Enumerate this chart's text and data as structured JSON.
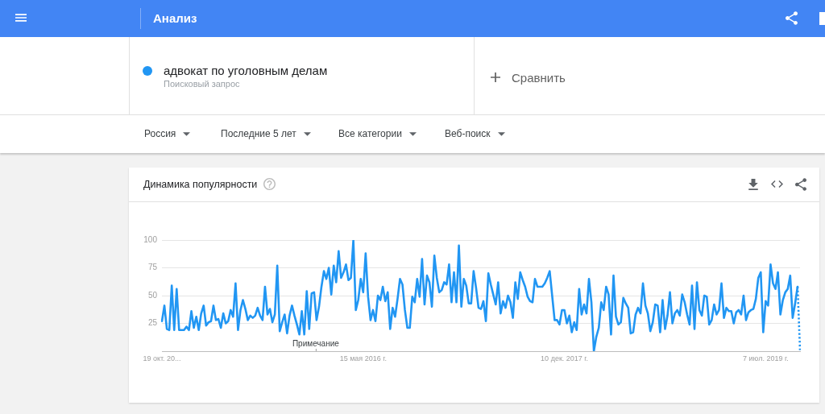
{
  "chart_data": {
    "type": "line",
    "title": "Динамика популярности",
    "annotations": [
      "Анализ",
      "Поисковый запрос",
      "Сравнить",
      "Россия",
      "Последние 5 лет",
      "Все категории",
      "Веб-поиск",
      "Примечание"
    ],
    "categories": [
      "19 окт. 20...",
      null,
      null,
      null,
      null,
      null,
      null,
      null,
      null,
      null,
      null,
      null,
      null,
      null,
      null,
      null,
      null,
      null,
      null,
      null,
      null,
      null,
      null,
      null,
      null,
      null,
      null,
      null,
      null,
      null,
      null,
      null,
      null,
      null,
      null,
      null,
      null,
      null,
      null,
      null,
      null,
      null,
      null,
      null,
      null,
      null,
      null,
      null,
      null,
      null,
      null,
      null,
      null,
      null,
      null,
      null,
      null,
      null,
      null,
      null,
      null,
      null,
      null,
      null,
      null,
      null,
      null,
      null,
      null,
      null,
      null,
      null,
      null,
      null,
      null,
      null,
      null,
      null,
      null,
      null,
      null,
      null,
      "15 мая 2016 г.",
      null,
      null,
      null,
      null,
      null,
      null,
      null,
      null,
      null,
      null,
      null,
      null,
      null,
      null,
      null,
      null,
      null,
      null,
      null,
      null,
      null,
      null,
      null,
      null,
      null,
      null,
      null,
      null,
      null,
      null,
      null,
      null,
      null,
      null,
      null,
      null,
      null,
      null,
      null,
      null,
      null,
      null,
      null,
      null,
      null,
      null,
      null,
      null,
      null,
      null,
      null,
      null,
      null,
      null,
      null,
      null,
      null,
      null,
      null,
      null,
      null,
      null,
      null,
      null,
      null,
      null,
      null,
      null,
      null,
      null,
      null,
      null,
      null,
      null,
      null,
      null,
      null,
      null,
      null,
      null,
      null,
      "10 дек. 2017 г.",
      null,
      null,
      null,
      null,
      null,
      null,
      null,
      null,
      null,
      null,
      null,
      null,
      null,
      null,
      null,
      null,
      null,
      null,
      null,
      null,
      null,
      null,
      null,
      null,
      null,
      null,
      null,
      null,
      null,
      null,
      null,
      null,
      null,
      null,
      null,
      null,
      null,
      null,
      null,
      null,
      null,
      null,
      null,
      null,
      null,
      null,
      null,
      null,
      null,
      null,
      null,
      null,
      null,
      null,
      null,
      null,
      null,
      null,
      null,
      null,
      null,
      null,
      null,
      null,
      null,
      null,
      null,
      null,
      null,
      null,
      null,
      null,
      null,
      null,
      null,
      null,
      null,
      null,
      null,
      null,
      null,
      "7 июл. 2019 г.",
      null,
      null,
      null,
      null,
      null,
      null,
      null,
      null,
      null,
      null,
      null,
      null,
      null,
      null
    ],
    "series": [
      {
        "name": "адвокат по уголовным делам",
        "color": "#2196f3",
        "values": [
          27,
          41,
          20,
          19,
          59,
          19,
          56,
          19,
          19,
          19,
          22,
          19,
          36,
          21,
          31,
          19,
          34,
          41,
          23,
          26,
          27,
          41,
          28,
          29,
          21,
          34,
          25,
          27,
          37,
          31,
          61,
          19,
          37,
          46,
          38,
          28,
          32,
          30,
          32,
          39,
          32,
          28,
          58,
          33,
          38,
          26,
          33,
          77,
          18,
          26,
          33,
          16,
          32,
          41,
          32,
          24,
          15,
          36,
          15,
          54,
          20,
          52,
          53,
          28,
          40,
          58,
          72,
          65,
          75,
          51,
          77,
          62,
          90,
          66,
          71,
          78,
          64,
          66,
          100,
          37,
          46,
          65,
          53,
          88,
          49,
          28,
          37,
          27,
          50,
          46,
          58,
          45,
          53,
          20,
          39,
          31,
          47,
          65,
          60,
          37,
          21,
          21,
          49,
          44,
          65,
          49,
          83,
          42,
          68,
          62,
          40,
          86,
          66,
          53,
          55,
          62,
          60,
          78,
          44,
          71,
          44,
          95,
          40,
          65,
          59,
          43,
          43,
          72,
          57,
          39,
          38,
          45,
          27,
          70,
          60,
          51,
          42,
          62,
          34,
          45,
          39,
          50,
          44,
          30,
          62,
          47,
          71,
          64,
          58,
          49,
          45,
          44,
          65,
          58,
          58,
          58,
          61,
          66,
          72,
          50,
          28,
          28,
          24,
          37,
          37,
          25,
          32,
          17,
          26,
          19,
          56,
          33,
          42,
          34,
          65,
          44,
          0,
          13,
          21,
          44,
          37,
          58,
          51,
          15,
          68,
          31,
          24,
          26,
          48,
          43,
          39,
          16,
          17,
          33,
          39,
          34,
          61,
          41,
          34,
          18,
          26,
          42,
          41,
          17,
          46,
          20,
          32,
          53,
          25,
          34,
          37,
          32,
          51,
          44,
          33,
          24,
          59,
          20,
          62,
          37,
          32,
          50,
          49,
          24,
          28,
          42,
          33,
          37,
          61,
          30,
          39,
          36,
          36,
          25,
          35,
          37,
          33,
          50,
          28,
          35,
          37,
          38,
          47,
          66,
          71,
          17,
          45,
          41,
          78,
          61,
          56,
          71,
          33,
          46,
          53,
          56,
          68,
          30,
          43,
          58,
          null
        ]
      },
      {
        "color": "#2196f3",
        "line_style": "dotted",
        "values": [
          null,
          null,
          null,
          null,
          null,
          null,
          null,
          null,
          null,
          null,
          null,
          null,
          null,
          null,
          null,
          null,
          null,
          null,
          null,
          null,
          null,
          null,
          null,
          null,
          null,
          null,
          null,
          null,
          null,
          null,
          null,
          null,
          null,
          null,
          null,
          null,
          null,
          null,
          null,
          null,
          null,
          null,
          null,
          null,
          null,
          null,
          null,
          null,
          null,
          null,
          null,
          null,
          null,
          null,
          null,
          null,
          null,
          null,
          null,
          null,
          null,
          null,
          null,
          null,
          null,
          null,
          null,
          null,
          null,
          null,
          null,
          null,
          null,
          null,
          null,
          null,
          null,
          null,
          null,
          null,
          null,
          null,
          null,
          null,
          null,
          null,
          null,
          null,
          null,
          null,
          null,
          null,
          null,
          null,
          null,
          null,
          null,
          null,
          null,
          null,
          null,
          null,
          null,
          null,
          null,
          null,
          null,
          null,
          null,
          null,
          null,
          null,
          null,
          null,
          null,
          null,
          null,
          null,
          null,
          null,
          null,
          null,
          null,
          null,
          null,
          null,
          null,
          null,
          null,
          null,
          null,
          null,
          null,
          null,
          null,
          null,
          null,
          null,
          null,
          null,
          null,
          null,
          null,
          null,
          null,
          null,
          null,
          null,
          null,
          null,
          null,
          null,
          null,
          null,
          null,
          null,
          null,
          null,
          null,
          null,
          null,
          null,
          null,
          null,
          null,
          null,
          null,
          null,
          null,
          null,
          null,
          null,
          null,
          null,
          null,
          null,
          null,
          null,
          null,
          null,
          null,
          null,
          null,
          null,
          null,
          null,
          null,
          null,
          null,
          null,
          null,
          null,
          null,
          null,
          null,
          null,
          null,
          null,
          null,
          null,
          null,
          null,
          null,
          null,
          null,
          null,
          null,
          null,
          null,
          null,
          null,
          null,
          null,
          null,
          null,
          null,
          null,
          null,
          null,
          null,
          null,
          null,
          null,
          null,
          null,
          null,
          null,
          null,
          null,
          null,
          null,
          null,
          null,
          null,
          null,
          null,
          null,
          null,
          null,
          null,
          null,
          null,
          null,
          null,
          null,
          null,
          null,
          null,
          null,
          null,
          null,
          null,
          null,
          null,
          null,
          null,
          null,
          null,
          null,
          58,
          1
        ]
      }
    ],
    "ylim": [
      0,
      100
    ],
    "yticks": [
      25,
      50,
      75,
      100
    ],
    "grid": "y",
    "legend": "top left",
    "marker": "none"
  }
}
